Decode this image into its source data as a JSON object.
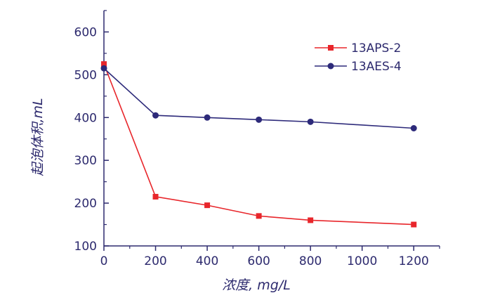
{
  "chart_data": {
    "type": "line",
    "xlabel": "浓度, mg/L",
    "ylabel": "起泡体积,mL",
    "x": [
      0,
      200,
      400,
      600,
      800,
      1000,
      1200
    ],
    "xlim": [
      0,
      1300
    ],
    "ylim": [
      100,
      650
    ],
    "xticks": [
      0,
      200,
      400,
      600,
      800,
      1000,
      1200
    ],
    "yticks": [
      100,
      200,
      300,
      400,
      500,
      600
    ],
    "grid": false,
    "legend_position": "top-right",
    "series": [
      {
        "name": "13APS-2",
        "color": "#e8262b",
        "marker": "square",
        "x": [
          0,
          200,
          400,
          600,
          800,
          1200
        ],
        "values": [
          525,
          215,
          195,
          170,
          160,
          150
        ]
      },
      {
        "name": "13AES-4",
        "color": "#2d2a7a",
        "marker": "circle",
        "x": [
          0,
          200,
          400,
          600,
          800,
          1200
        ],
        "values": [
          515,
          405,
          400,
          395,
          390,
          375
        ]
      }
    ],
    "axis_color": "#2d2a6e"
  }
}
